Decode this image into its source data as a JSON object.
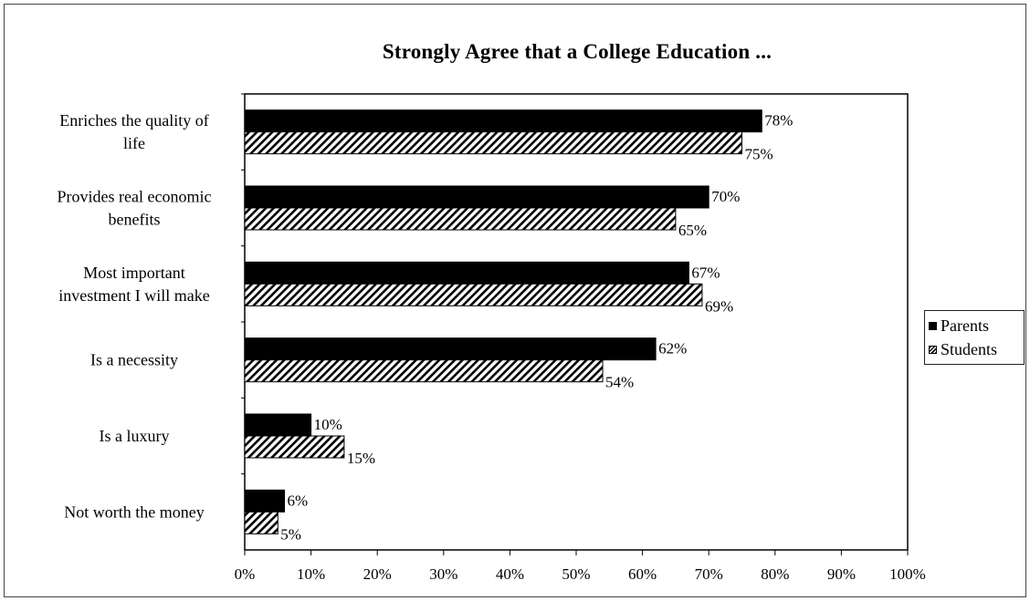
{
  "chart_data": {
    "type": "bar",
    "orientation": "horizontal",
    "title": "Strongly Agree that a College Education ...",
    "categories": [
      [
        "Enriches the quality of",
        "life"
      ],
      [
        "Provides real economic",
        "benefits"
      ],
      [
        "Most important",
        "investment I will make"
      ],
      [
        "Is a necessity"
      ],
      [
        "Is a luxury"
      ],
      [
        "Not worth the money"
      ]
    ],
    "series": [
      {
        "name": "Parents",
        "fill": "solid",
        "color": "#000000",
        "values": [
          78,
          70,
          67,
          62,
          10,
          6
        ]
      },
      {
        "name": "Students",
        "fill": "hatched",
        "color": "#000000",
        "values": [
          75,
          65,
          69,
          54,
          15,
          5
        ]
      }
    ],
    "value_labels": {
      "Parents": [
        "78%",
        "70%",
        "67%",
        "62%",
        "10%",
        "6%"
      ],
      "Students": [
        "75%",
        "65%",
        "69%",
        "54%",
        "15%",
        "5%"
      ]
    },
    "xlim": [
      0,
      100
    ],
    "xticks": [
      "0%",
      "10%",
      "20%",
      "30%",
      "40%",
      "50%",
      "60%",
      "70%",
      "80%",
      "90%",
      "100%"
    ],
    "grid": false,
    "legend_position": "right"
  }
}
